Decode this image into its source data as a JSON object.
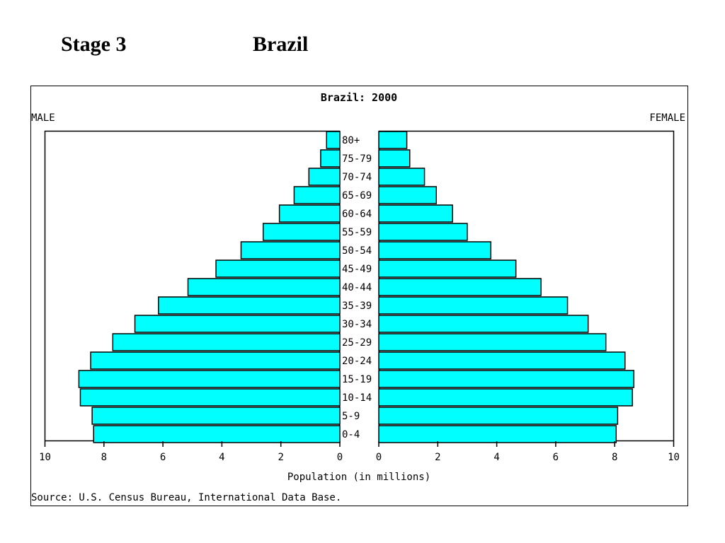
{
  "slide": {
    "stage_label": "Stage 3",
    "country_label": "Brazil"
  },
  "colors": {
    "bar_fill": "#00ffff",
    "bar_stroke": "#000000",
    "frame": "#000000",
    "background": "#ffffff"
  },
  "chart_data": {
    "type": "bar",
    "orientation": "horizontal",
    "subtype": "population-pyramid",
    "title": "Brazil: 2000",
    "left_label": "MALE",
    "right_label": "FEMALE",
    "xlabel": "Population (in millions)",
    "source": "Source: U.S. Census Bureau, International Data Base.",
    "xlim": [
      0,
      10
    ],
    "xticks": [
      "0",
      "2",
      "4",
      "6",
      "8",
      "10"
    ],
    "categories": [
      "80+",
      "75-79",
      "70-74",
      "65-69",
      "60-64",
      "55-59",
      "50-54",
      "45-49",
      "40-44",
      "35-39",
      "30-34",
      "25-29",
      "20-24",
      "15-19",
      "10-14",
      "5-9",
      "0-4"
    ],
    "series": [
      {
        "name": "MALE",
        "values": [
          0.45,
          0.65,
          1.05,
          1.55,
          2.05,
          2.6,
          3.35,
          4.2,
          5.15,
          6.15,
          6.95,
          7.7,
          8.45,
          8.85,
          8.8,
          8.4,
          8.35
        ]
      },
      {
        "name": "FEMALE",
        "values": [
          0.95,
          1.05,
          1.55,
          1.95,
          2.5,
          3.0,
          3.8,
          4.65,
          5.5,
          6.4,
          7.1,
          7.7,
          8.35,
          8.65,
          8.6,
          8.1,
          8.05
        ]
      }
    ],
    "grid": false,
    "legend": "none"
  }
}
